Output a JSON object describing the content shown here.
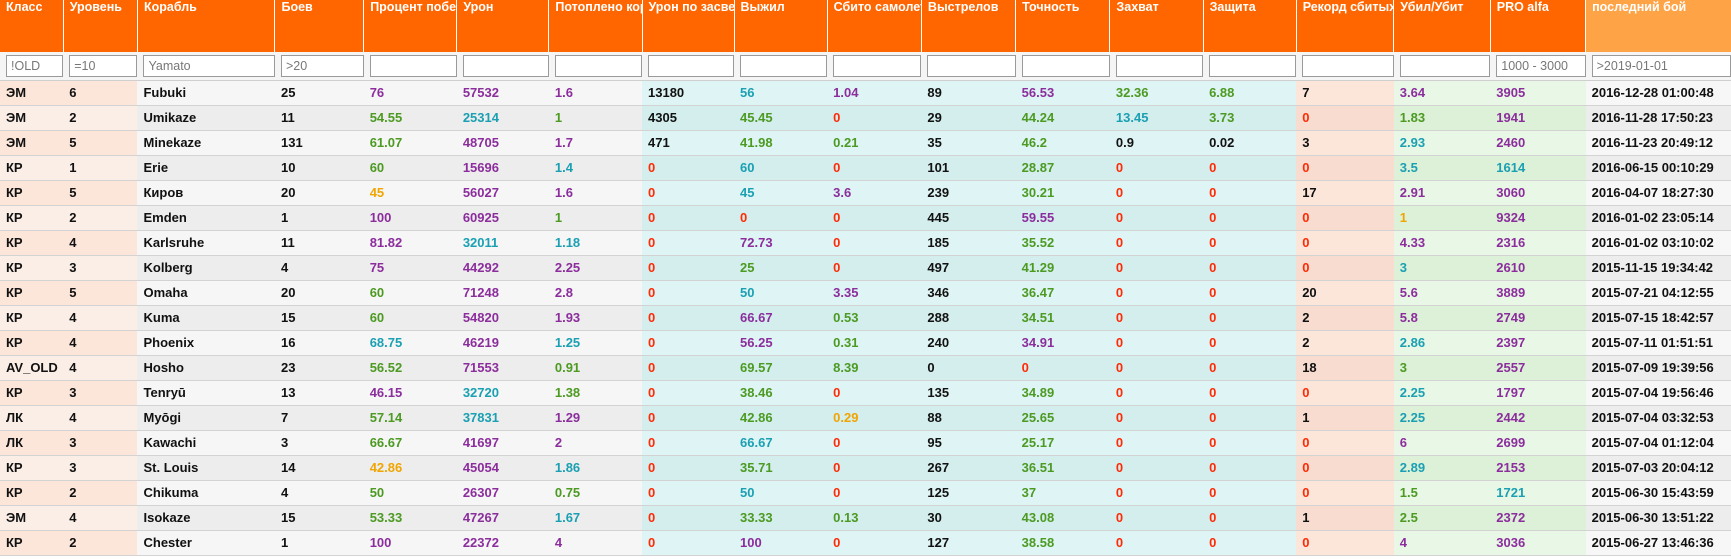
{
  "colors": {
    "header": "#ff6600",
    "header_last": "#ffa347",
    "k": "#111111",
    "p": "#8b2d9c",
    "g": "#4c9a22",
    "t": "#1aa0b2",
    "o": "#f0a500",
    "r": "#ff2b06"
  },
  "columns": [
    {
      "label": "Класс",
      "filter_value": "!OLD"
    },
    {
      "label": "Уровень",
      "filter_value": "=10"
    },
    {
      "label": "Корабль",
      "filter_value": "Yamato"
    },
    {
      "label": "Боев",
      "filter_value": ">20"
    },
    {
      "label": "Процент побед",
      "filter_value": ""
    },
    {
      "label": "Урон",
      "filter_value": ""
    },
    {
      "label": "Потоплено кораблей",
      "filter_value": ""
    },
    {
      "label": "Урон по засвету",
      "filter_value": ""
    },
    {
      "label": "Выжил",
      "filter_value": ""
    },
    {
      "label": "Сбито самолетов",
      "filter_value": ""
    },
    {
      "label": "Выстрелов",
      "filter_value": ""
    },
    {
      "label": "Точность",
      "filter_value": ""
    },
    {
      "label": "Захват",
      "filter_value": ""
    },
    {
      "label": "Защита",
      "filter_value": ""
    },
    {
      "label": "Рекорд сбитых самолётов",
      "filter_value": ""
    },
    {
      "label": "Убил/Убит",
      "filter_value": ""
    },
    {
      "label": "PRO alfa",
      "filter_value": "1000 - 3000"
    },
    {
      "label": "последний бой",
      "filter_value": ">2019-01-01"
    }
  ],
  "rows": [
    [
      [
        "ЭМ",
        "k"
      ],
      [
        "6",
        "k"
      ],
      [
        "Fubuki",
        "k"
      ],
      [
        "25",
        "k"
      ],
      [
        "76",
        "p"
      ],
      [
        "57532",
        "p"
      ],
      [
        "1.6",
        "p"
      ],
      [
        "13180",
        "k"
      ],
      [
        "56",
        "t"
      ],
      [
        "1.04",
        "p"
      ],
      [
        "89",
        "k"
      ],
      [
        "56.53",
        "p"
      ],
      [
        "32.36",
        "g"
      ],
      [
        "6.88",
        "g"
      ],
      [
        "7",
        "k"
      ],
      [
        "3.64",
        "p"
      ],
      [
        "3905",
        "p"
      ],
      [
        "2016-12-28 01:00:48",
        "k"
      ]
    ],
    [
      [
        "ЭМ",
        "k"
      ],
      [
        "2",
        "k"
      ],
      [
        "Umikaze",
        "k"
      ],
      [
        "11",
        "k"
      ],
      [
        "54.55",
        "g"
      ],
      [
        "25314",
        "t"
      ],
      [
        "1",
        "g"
      ],
      [
        "4305",
        "k"
      ],
      [
        "45.45",
        "g"
      ],
      [
        "0",
        "r"
      ],
      [
        "29",
        "k"
      ],
      [
        "44.24",
        "g"
      ],
      [
        "13.45",
        "t"
      ],
      [
        "3.73",
        "g"
      ],
      [
        "0",
        "r"
      ],
      [
        "1.83",
        "g"
      ],
      [
        "1941",
        "p"
      ],
      [
        "2016-11-28 17:50:23",
        "k"
      ]
    ],
    [
      [
        "ЭМ",
        "k"
      ],
      [
        "5",
        "k"
      ],
      [
        "Minekaze",
        "k"
      ],
      [
        "131",
        "k"
      ],
      [
        "61.07",
        "g"
      ],
      [
        "48705",
        "p"
      ],
      [
        "1.7",
        "p"
      ],
      [
        "471",
        "k"
      ],
      [
        "41.98",
        "g"
      ],
      [
        "0.21",
        "g"
      ],
      [
        "35",
        "k"
      ],
      [
        "46.2",
        "g"
      ],
      [
        "0.9",
        "k"
      ],
      [
        "0.02",
        "k"
      ],
      [
        "3",
        "k"
      ],
      [
        "2.93",
        "t"
      ],
      [
        "2460",
        "p"
      ],
      [
        "2016-11-23 20:49:12",
        "k"
      ]
    ],
    [
      [
        "КР",
        "k"
      ],
      [
        "1",
        "k"
      ],
      [
        "Erie",
        "k"
      ],
      [
        "10",
        "k"
      ],
      [
        "60",
        "g"
      ],
      [
        "15696",
        "p"
      ],
      [
        "1.4",
        "t"
      ],
      [
        "0",
        "r"
      ],
      [
        "60",
        "t"
      ],
      [
        "0",
        "r"
      ],
      [
        "101",
        "k"
      ],
      [
        "28.87",
        "g"
      ],
      [
        "0",
        "r"
      ],
      [
        "0",
        "r"
      ],
      [
        "0",
        "r"
      ],
      [
        "3.5",
        "t"
      ],
      [
        "1614",
        "t"
      ],
      [
        "2016-06-15 00:10:29",
        "k"
      ]
    ],
    [
      [
        "КР",
        "k"
      ],
      [
        "5",
        "k"
      ],
      [
        "Киров",
        "k"
      ],
      [
        "20",
        "k"
      ],
      [
        "45",
        "o"
      ],
      [
        "56027",
        "p"
      ],
      [
        "1.6",
        "p"
      ],
      [
        "0",
        "r"
      ],
      [
        "45",
        "t"
      ],
      [
        "3.6",
        "p"
      ],
      [
        "239",
        "k"
      ],
      [
        "30.21",
        "g"
      ],
      [
        "0",
        "r"
      ],
      [
        "0",
        "r"
      ],
      [
        "17",
        "k"
      ],
      [
        "2.91",
        "p"
      ],
      [
        "3060",
        "p"
      ],
      [
        "2016-04-07 18:27:30",
        "k"
      ]
    ],
    [
      [
        "КР",
        "k"
      ],
      [
        "2",
        "k"
      ],
      [
        "Emden",
        "k"
      ],
      [
        "1",
        "k"
      ],
      [
        "100",
        "p"
      ],
      [
        "60925",
        "p"
      ],
      [
        "1",
        "g"
      ],
      [
        "0",
        "r"
      ],
      [
        "0",
        "r"
      ],
      [
        "0",
        "r"
      ],
      [
        "445",
        "k"
      ],
      [
        "59.55",
        "p"
      ],
      [
        "0",
        "r"
      ],
      [
        "0",
        "r"
      ],
      [
        "0",
        "r"
      ],
      [
        "1",
        "o"
      ],
      [
        "9324",
        "p"
      ],
      [
        "2016-01-02 23:05:14",
        "k"
      ]
    ],
    [
      [
        "КР",
        "k"
      ],
      [
        "4",
        "k"
      ],
      [
        "Karlsruhe",
        "k"
      ],
      [
        "11",
        "k"
      ],
      [
        "81.82",
        "p"
      ],
      [
        "32011",
        "t"
      ],
      [
        "1.18",
        "t"
      ],
      [
        "0",
        "r"
      ],
      [
        "72.73",
        "p"
      ],
      [
        "0",
        "r"
      ],
      [
        "185",
        "k"
      ],
      [
        "35.52",
        "g"
      ],
      [
        "0",
        "r"
      ],
      [
        "0",
        "r"
      ],
      [
        "0",
        "r"
      ],
      [
        "4.33",
        "p"
      ],
      [
        "2316",
        "p"
      ],
      [
        "2016-01-02 03:10:02",
        "k"
      ]
    ],
    [
      [
        "КР",
        "k"
      ],
      [
        "3",
        "k"
      ],
      [
        "Kolberg",
        "k"
      ],
      [
        "4",
        "k"
      ],
      [
        "75",
        "p"
      ],
      [
        "44292",
        "p"
      ],
      [
        "2.25",
        "p"
      ],
      [
        "0",
        "r"
      ],
      [
        "25",
        "g"
      ],
      [
        "0",
        "r"
      ],
      [
        "497",
        "k"
      ],
      [
        "41.29",
        "g"
      ],
      [
        "0",
        "r"
      ],
      [
        "0",
        "r"
      ],
      [
        "0",
        "r"
      ],
      [
        "3",
        "t"
      ],
      [
        "2610",
        "p"
      ],
      [
        "2015-11-15 19:34:42",
        "k"
      ]
    ],
    [
      [
        "КР",
        "k"
      ],
      [
        "5",
        "k"
      ],
      [
        "Omaha",
        "k"
      ],
      [
        "20",
        "k"
      ],
      [
        "60",
        "g"
      ],
      [
        "71248",
        "p"
      ],
      [
        "2.8",
        "p"
      ],
      [
        "0",
        "r"
      ],
      [
        "50",
        "t"
      ],
      [
        "3.35",
        "p"
      ],
      [
        "346",
        "k"
      ],
      [
        "36.47",
        "g"
      ],
      [
        "0",
        "r"
      ],
      [
        "0",
        "r"
      ],
      [
        "20",
        "k"
      ],
      [
        "5.6",
        "p"
      ],
      [
        "3889",
        "p"
      ],
      [
        "2015-07-21 04:12:55",
        "k"
      ]
    ],
    [
      [
        "КР",
        "k"
      ],
      [
        "4",
        "k"
      ],
      [
        "Kuma",
        "k"
      ],
      [
        "15",
        "k"
      ],
      [
        "60",
        "g"
      ],
      [
        "54820",
        "p"
      ],
      [
        "1.93",
        "p"
      ],
      [
        "0",
        "r"
      ],
      [
        "66.67",
        "p"
      ],
      [
        "0.53",
        "g"
      ],
      [
        "288",
        "k"
      ],
      [
        "34.51",
        "g"
      ],
      [
        "0",
        "r"
      ],
      [
        "0",
        "r"
      ],
      [
        "2",
        "k"
      ],
      [
        "5.8",
        "p"
      ],
      [
        "2749",
        "p"
      ],
      [
        "2015-07-15 18:42:57",
        "k"
      ]
    ],
    [
      [
        "КР",
        "k"
      ],
      [
        "4",
        "k"
      ],
      [
        "Phoenix",
        "k"
      ],
      [
        "16",
        "k"
      ],
      [
        "68.75",
        "t"
      ],
      [
        "46219",
        "p"
      ],
      [
        "1.25",
        "t"
      ],
      [
        "0",
        "r"
      ],
      [
        "56.25",
        "p"
      ],
      [
        "0.31",
        "g"
      ],
      [
        "240",
        "k"
      ],
      [
        "34.91",
        "p"
      ],
      [
        "0",
        "r"
      ],
      [
        "0",
        "r"
      ],
      [
        "2",
        "k"
      ],
      [
        "2.86",
        "t"
      ],
      [
        "2397",
        "p"
      ],
      [
        "2015-07-11 01:51:51",
        "k"
      ]
    ],
    [
      [
        "AV_OLD",
        "k"
      ],
      [
        "4",
        "k"
      ],
      [
        "Hosho",
        "k"
      ],
      [
        "23",
        "k"
      ],
      [
        "56.52",
        "g"
      ],
      [
        "71553",
        "p"
      ],
      [
        "0.91",
        "g"
      ],
      [
        "0",
        "r"
      ],
      [
        "69.57",
        "g"
      ],
      [
        "8.39",
        "g"
      ],
      [
        "0",
        "k"
      ],
      [
        "0",
        "r"
      ],
      [
        "0",
        "r"
      ],
      [
        "0",
        "r"
      ],
      [
        "18",
        "k"
      ],
      [
        "3",
        "g"
      ],
      [
        "2557",
        "p"
      ],
      [
        "2015-07-09 19:39:56",
        "k"
      ]
    ],
    [
      [
        "КР",
        "k"
      ],
      [
        "3",
        "k"
      ],
      [
        "Tenryū",
        "k"
      ],
      [
        "13",
        "k"
      ],
      [
        "46.15",
        "p"
      ],
      [
        "32720",
        "t"
      ],
      [
        "1.38",
        "g"
      ],
      [
        "0",
        "r"
      ],
      [
        "38.46",
        "g"
      ],
      [
        "0",
        "r"
      ],
      [
        "135",
        "k"
      ],
      [
        "34.89",
        "g"
      ],
      [
        "0",
        "r"
      ],
      [
        "0",
        "r"
      ],
      [
        "0",
        "r"
      ],
      [
        "2.25",
        "t"
      ],
      [
        "1797",
        "p"
      ],
      [
        "2015-07-04 19:56:46",
        "k"
      ]
    ],
    [
      [
        "ЛК",
        "k"
      ],
      [
        "4",
        "k"
      ],
      [
        "Myōgi",
        "k"
      ],
      [
        "7",
        "k"
      ],
      [
        "57.14",
        "g"
      ],
      [
        "37831",
        "t"
      ],
      [
        "1.29",
        "p"
      ],
      [
        "0",
        "r"
      ],
      [
        "42.86",
        "g"
      ],
      [
        "0.29",
        "o"
      ],
      [
        "88",
        "k"
      ],
      [
        "25.65",
        "g"
      ],
      [
        "0",
        "r"
      ],
      [
        "0",
        "r"
      ],
      [
        "1",
        "k"
      ],
      [
        "2.25",
        "t"
      ],
      [
        "2442",
        "p"
      ],
      [
        "2015-07-04 03:32:53",
        "k"
      ]
    ],
    [
      [
        "ЛК",
        "k"
      ],
      [
        "3",
        "k"
      ],
      [
        "Kawachi",
        "k"
      ],
      [
        "3",
        "k"
      ],
      [
        "66.67",
        "g"
      ],
      [
        "41697",
        "p"
      ],
      [
        "2",
        "p"
      ],
      [
        "0",
        "r"
      ],
      [
        "66.67",
        "t"
      ],
      [
        "0",
        "r"
      ],
      [
        "95",
        "k"
      ],
      [
        "25.17",
        "g"
      ],
      [
        "0",
        "r"
      ],
      [
        "0",
        "r"
      ],
      [
        "0",
        "r"
      ],
      [
        "6",
        "p"
      ],
      [
        "2699",
        "p"
      ],
      [
        "2015-07-04 01:12:04",
        "k"
      ]
    ],
    [
      [
        "КР",
        "k"
      ],
      [
        "3",
        "k"
      ],
      [
        "St. Louis",
        "k"
      ],
      [
        "14",
        "k"
      ],
      [
        "42.86",
        "o"
      ],
      [
        "45054",
        "p"
      ],
      [
        "1.86",
        "t"
      ],
      [
        "0",
        "r"
      ],
      [
        "35.71",
        "g"
      ],
      [
        "0",
        "r"
      ],
      [
        "267",
        "k"
      ],
      [
        "36.51",
        "g"
      ],
      [
        "0",
        "r"
      ],
      [
        "0",
        "r"
      ],
      [
        "0",
        "r"
      ],
      [
        "2.89",
        "t"
      ],
      [
        "2153",
        "p"
      ],
      [
        "2015-07-03 20:04:12",
        "k"
      ]
    ],
    [
      [
        "КР",
        "k"
      ],
      [
        "2",
        "k"
      ],
      [
        "Chikuma",
        "k"
      ],
      [
        "4",
        "k"
      ],
      [
        "50",
        "g"
      ],
      [
        "26307",
        "p"
      ],
      [
        "0.75",
        "g"
      ],
      [
        "0",
        "r"
      ],
      [
        "50",
        "t"
      ],
      [
        "0",
        "r"
      ],
      [
        "125",
        "k"
      ],
      [
        "37",
        "g"
      ],
      [
        "0",
        "r"
      ],
      [
        "0",
        "r"
      ],
      [
        "0",
        "r"
      ],
      [
        "1.5",
        "g"
      ],
      [
        "1721",
        "t"
      ],
      [
        "2015-06-30 15:43:59",
        "k"
      ]
    ],
    [
      [
        "ЭМ",
        "k"
      ],
      [
        "4",
        "k"
      ],
      [
        "Isokaze",
        "k"
      ],
      [
        "15",
        "k"
      ],
      [
        "53.33",
        "g"
      ],
      [
        "47267",
        "p"
      ],
      [
        "1.67",
        "t"
      ],
      [
        "0",
        "r"
      ],
      [
        "33.33",
        "g"
      ],
      [
        "0.13",
        "g"
      ],
      [
        "30",
        "k"
      ],
      [
        "43.08",
        "g"
      ],
      [
        "0",
        "r"
      ],
      [
        "0",
        "r"
      ],
      [
        "1",
        "k"
      ],
      [
        "2.5",
        "g"
      ],
      [
        "2372",
        "p"
      ],
      [
        "2015-06-30 13:51:22",
        "k"
      ]
    ],
    [
      [
        "КР",
        "k"
      ],
      [
        "2",
        "k"
      ],
      [
        "Chester",
        "k"
      ],
      [
        "1",
        "k"
      ],
      [
        "100",
        "p"
      ],
      [
        "22372",
        "p"
      ],
      [
        "4",
        "p"
      ],
      [
        "0",
        "r"
      ],
      [
        "100",
        "p"
      ],
      [
        "0",
        "r"
      ],
      [
        "127",
        "k"
      ],
      [
        "38.58",
        "g"
      ],
      [
        "0",
        "r"
      ],
      [
        "0",
        "r"
      ],
      [
        "0",
        "r"
      ],
      [
        "4",
        "p"
      ],
      [
        "3036",
        "p"
      ],
      [
        "2015-06-27 13:46:36",
        "k"
      ]
    ]
  ]
}
